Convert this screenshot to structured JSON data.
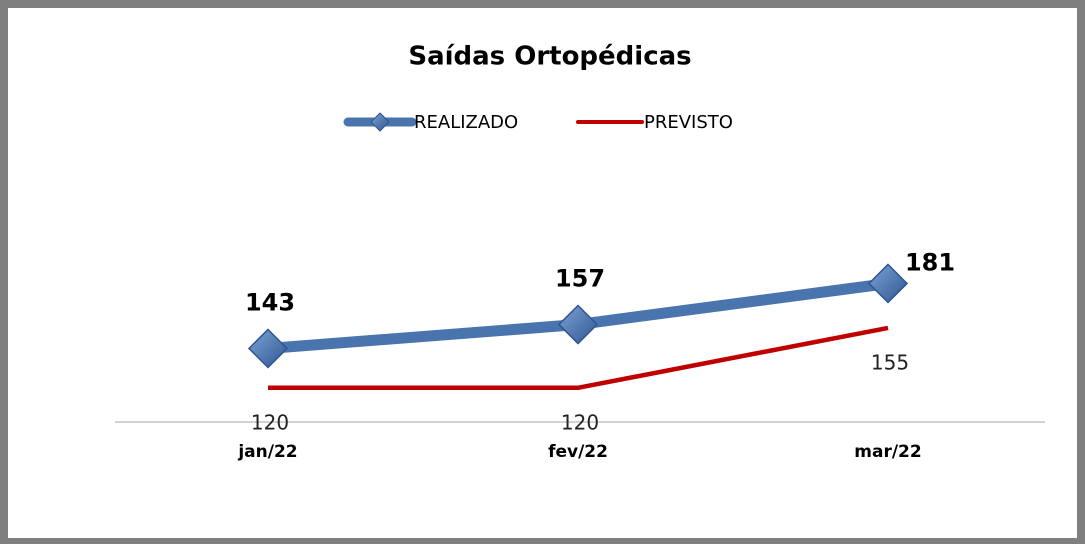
{
  "chart_data": {
    "type": "line",
    "title": "Saídas Ortopédicas",
    "categories": [
      "jan/22",
      "fev/22",
      "mar/22"
    ],
    "series": [
      {
        "name": "REALIZADO",
        "color": "#4a74ad",
        "values": [
          143,
          157,
          181
        ]
      },
      {
        "name": "PREVISTO",
        "color": "#c00000",
        "values": [
          120,
          120,
          155
        ]
      }
    ],
    "ylim": [
      100,
      200
    ],
    "legend": "top"
  }
}
